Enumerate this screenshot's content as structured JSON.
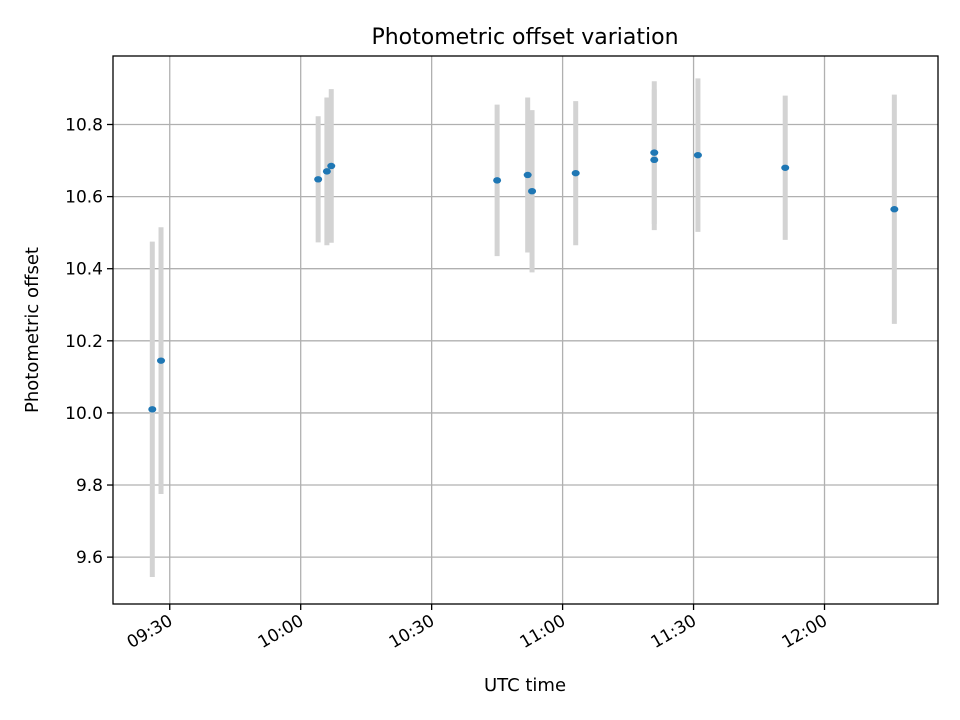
{
  "chart_data": {
    "type": "scatter",
    "title": "Photometric offset variation",
    "xlabel": "UTC time",
    "ylabel": "Photometric offset",
    "x_axis_type": "time",
    "xlim": [
      "09:17",
      "12:26"
    ],
    "ylim": [
      9.47,
      10.99
    ],
    "xticks": [
      "09:30",
      "10:00",
      "10:30",
      "11:00",
      "11:30",
      "12:00"
    ],
    "yticks": [
      "9.6",
      "9.8",
      "10.0",
      "10.2",
      "10.4",
      "10.6",
      "10.8"
    ],
    "grid": true,
    "colors": {
      "point": "#1f77b4",
      "errorbar": "#d3d3d3",
      "grid": "#b0b0b0"
    },
    "series": [
      {
        "points": [
          {
            "x": "09:26",
            "y": 10.01,
            "err": 0.465
          },
          {
            "x": "09:28",
            "y": 10.145,
            "err": 0.37
          },
          {
            "x": "10:04",
            "y": 10.648,
            "err": 0.175
          },
          {
            "x": "10:06",
            "y": 10.67,
            "err": 0.205
          },
          {
            "x": "10:07",
            "y": 10.685,
            "err": 0.213
          },
          {
            "x": "10:45",
            "y": 10.645,
            "err": 0.21
          },
          {
            "x": "10:52",
            "y": 10.66,
            "err": 0.215
          },
          {
            "x": "10:53",
            "y": 10.615,
            "err": 0.225
          },
          {
            "x": "11:03",
            "y": 10.665,
            "err": 0.2
          },
          {
            "x": "11:21",
            "y": 10.702,
            "err": 0.195
          },
          {
            "x": "11:21",
            "y": 10.722,
            "err": 0.198
          },
          {
            "x": "11:31",
            "y": 10.715,
            "err": 0.213
          },
          {
            "x": "11:51",
            "y": 10.68,
            "err": 0.2
          },
          {
            "x": "12:16",
            "y": 10.565,
            "err": 0.318
          }
        ]
      }
    ]
  }
}
